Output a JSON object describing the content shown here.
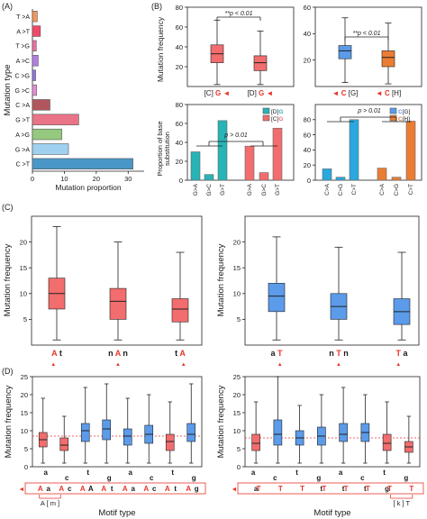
{
  "colors": {
    "red": "#f26d6d",
    "blue": "#5b9bea",
    "accent_red": "#e8342b",
    "purple": "#9b3aa6",
    "orange": "#ea7d33",
    "teal": "#27b4b6",
    "cyan": "#2aa8e0",
    "dark": "#1a1a1a"
  },
  "panel_labels": {
    "A": "(A)",
    "B": "(B)",
    "C": "(C)",
    "D": "(D)"
  },
  "chart_data": [
    {
      "panel": "A",
      "type": "bar",
      "orientation": "horizontal",
      "ylabel": "Mutation type",
      "xlabel": "Mutation proportion",
      "categories": [
        "T>A",
        "A>T",
        "T>G",
        "A>C",
        "C>G",
        "G>C",
        "C>A",
        "G>T",
        "A>G",
        "G>A",
        "C>T"
      ],
      "category_labels": [
        "T >A",
        "A >T",
        "T >G",
        "A >C",
        "C >G",
        "G >C",
        "C >A",
        "G >T",
        "A >G",
        "G >A",
        "C >T"
      ],
      "values": [
        1.5,
        2.5,
        1.2,
        1.8,
        1.0,
        1.3,
        5.5,
        14.5,
        9.2,
        11.3,
        31.5
      ],
      "colors": [
        "#f5965a",
        "#ef4a67",
        "#ee6fa0",
        "#b27fe0",
        "#8f77e0",
        "#e38fd8",
        "#b2565e",
        "#e97387",
        "#94c97f",
        "#9fd0f0",
        "#4a96c8"
      ],
      "xlim": [
        0,
        35
      ],
      "xticks": [
        "0",
        "10",
        "20",
        "30"
      ]
    },
    {
      "panel": "B1",
      "type": "box",
      "ylabel": "Mutation frequency",
      "ylim": [
        0,
        80
      ],
      "yticks": [
        "20",
        "40",
        "60",
        "80"
      ],
      "annotation": "**p < 0.01",
      "series": [
        {
          "label_black": "[C] ",
          "label_red": "G",
          "arrow": "◄",
          "color": "red",
          "min": 2,
          "q1": 24,
          "median": 33,
          "q3": 42,
          "max": 67
        },
        {
          "label_black": "[D] ",
          "label_red": "G",
          "arrow": "◄",
          "color": "red",
          "min": 2,
          "q1": 16,
          "median": 24,
          "q3": 31,
          "max": 56
        }
      ]
    },
    {
      "panel": "B2",
      "type": "box",
      "ylim": [
        0,
        60
      ],
      "yticks": [
        "20",
        "40",
        "60"
      ],
      "annotation": "**p < 0.01",
      "series": [
        {
          "label_prefix": "◄ ",
          "label_red": "C",
          "label_black": " [G]",
          "color": "blue",
          "min": 3,
          "q1": 21,
          "median": 27,
          "q3": 31,
          "max": 52
        },
        {
          "label_prefix": "◄ ",
          "label_red": "C",
          "label_black": " [H]",
          "color": "orange",
          "min": 2,
          "q1": 15,
          "median": 22,
          "q3": 27,
          "max": 48
        }
      ]
    },
    {
      "panel": "B3",
      "type": "bar",
      "ylabel": "Proportion of base",
      "ylabel2": "substitution",
      "ylim": [
        0,
        80
      ],
      "yticks": [
        "0",
        "20",
        "40",
        "60",
        "80"
      ],
      "annotation": "p > 0.01",
      "legend": [
        {
          "label_black": "[D]",
          "label_colored": "G",
          "color": "teal"
        },
        {
          "label_black": "[C]",
          "label_colored": "G",
          "color": "red"
        }
      ],
      "categories": [
        "G>A",
        "G>C",
        "G>T",
        "G>A",
        "G>C",
        "G>T"
      ],
      "values": [
        30,
        6,
        63,
        36,
        8,
        55
      ],
      "colors": [
        "teal",
        "teal",
        "teal",
        "red",
        "red",
        "red"
      ]
    },
    {
      "panel": "B4",
      "type": "bar",
      "ylim": [
        0,
        100
      ],
      "yticks": [
        "0",
        "20",
        "40",
        "60",
        "80"
      ],
      "annotation": "p > 0.01",
      "legend": [
        {
          "label_black": "",
          "label_colored": "C",
          "label_after": "[G]",
          "color": "blue"
        },
        {
          "label_black": "",
          "label_colored": "C",
          "label_after": "[H]",
          "color": "orange"
        }
      ],
      "categories": [
        "C>A",
        "C>G",
        "C>T",
        "C>A",
        "C>G",
        "C>T"
      ],
      "values": [
        15,
        4,
        80,
        16,
        4,
        78
      ],
      "colors": [
        "cyan",
        "cyan",
        "cyan",
        "orange",
        "orange",
        "orange"
      ]
    },
    {
      "panel": "C1",
      "type": "box",
      "ylabel": "Mutation frequency",
      "ylim": [
        0,
        25
      ],
      "yticks": [
        "5",
        "10",
        "15",
        "20"
      ],
      "series": [
        {
          "color": "red",
          "min": 1,
          "q1": 7,
          "median": 10,
          "q3": 13,
          "max": 23,
          "label": [
            {
              "t": "A",
              "red": true
            },
            {
              "t": "t",
              "red": false
            }
          ],
          "arrow_index": 0
        },
        {
          "color": "red",
          "min": 1,
          "q1": 5,
          "median": 8.5,
          "q3": 11,
          "max": 20,
          "label": [
            {
              "t": "n",
              "red": false
            },
            {
              "t": "A",
              "red": true
            },
            {
              "t": "n",
              "red": false
            }
          ],
          "arrow_index": 1
        },
        {
          "color": "red",
          "min": 1,
          "q1": 4.5,
          "median": 7,
          "q3": 9,
          "max": 18,
          "label": [
            {
              "t": "t",
              "red": false
            },
            {
              "t": "A",
              "red": true
            }
          ],
          "arrow_index": 1
        }
      ]
    },
    {
      "panel": "C2",
      "type": "box",
      "ylabel": "Mutation frequency",
      "ylim": [
        0,
        25
      ],
      "yticks": [
        "5",
        "10",
        "15",
        "20"
      ],
      "series": [
        {
          "color": "blue",
          "min": 1,
          "q1": 6.5,
          "median": 9.5,
          "q3": 12,
          "max": 21,
          "label": [
            {
              "t": "a",
              "red": false
            },
            {
              "t": "T",
              "red": true
            }
          ],
          "arrow_index": 1
        },
        {
          "color": "blue",
          "min": 1,
          "q1": 5,
          "median": 7.5,
          "q3": 10,
          "max": 19,
          "label": [
            {
              "t": "n",
              "red": false
            },
            {
              "t": "T",
              "red": true
            },
            {
              "t": "n",
              "red": false
            }
          ],
          "arrow_index": 1
        },
        {
          "color": "blue",
          "min": 1,
          "q1": 4,
          "median": 6.5,
          "q3": 9,
          "max": 18,
          "label": [
            {
              "t": "T",
              "red": true
            },
            {
              "t": "a",
              "red": false
            }
          ],
          "arrow_index": 0
        }
      ]
    },
    {
      "panel": "D1",
      "type": "box",
      "ylabel": "Mutation frequency",
      "xlabel": "Motif type",
      "ylim": [
        0,
        25
      ],
      "yticks": [
        "0",
        "5",
        "10",
        "15",
        "20",
        "25"
      ],
      "reference_line": 8.5,
      "bracket_label": "A [ m ]",
      "series": [
        {
          "color": "red",
          "min": 1,
          "q1": 5.5,
          "median": 7.5,
          "q3": 9.5,
          "max": 19,
          "top": "a",
          "bottom": "A"
        },
        {
          "color": "red",
          "min": 1,
          "q1": 4.5,
          "median": 6,
          "q3": 8,
          "max": 14,
          "top": "c",
          "bottom": "A"
        },
        {
          "color": "blue",
          "min": 1,
          "q1": 7,
          "median": 10,
          "q3": 12,
          "max": 22,
          "top": "t",
          "bottom": "A"
        },
        {
          "color": "blue",
          "min": 1,
          "q1": 7.5,
          "median": 10.5,
          "q3": 13,
          "max": 23,
          "top": "g",
          "bottom": "A"
        },
        {
          "color": "blue",
          "min": 1,
          "q1": 6,
          "median": 8.5,
          "q3": 10.5,
          "max": 19,
          "top": "a",
          "bottom": "A"
        },
        {
          "color": "blue",
          "min": 1,
          "q1": 6.5,
          "median": 9,
          "q3": 11.5,
          "max": 20,
          "top": "c",
          "bottom": "A"
        },
        {
          "color": "red",
          "min": 1,
          "q1": 4.5,
          "median": 7,
          "q3": 9,
          "max": 18,
          "top": "t",
          "bottom": "A"
        },
        {
          "color": "blue",
          "min": 1,
          "q1": 7,
          "median": 9,
          "q3": 12,
          "max": 23,
          "top": "g",
          "bottom": "A"
        }
      ],
      "bottom_extra": [
        {
          "t": "a",
          "after": 0
        },
        {
          "t": "c",
          "after": 1
        },
        {
          "t": "A",
          "after": 2
        },
        {
          "t": "t",
          "after": 3
        },
        {
          "t": "a",
          "after": 4
        },
        {
          "t": "c",
          "after": 5
        },
        {
          "t": "t",
          "after": 6
        },
        {
          "t": "g",
          "after": 7
        }
      ]
    },
    {
      "panel": "D2",
      "type": "box",
      "ylabel": "Mutation frequency",
      "xlabel": "Motif type",
      "ylim": [
        0,
        25
      ],
      "yticks": [
        "0",
        "5",
        "10",
        "15",
        "20",
        "25"
      ],
      "reference_line": 8,
      "bracket_label": "[ k ] T",
      "series": [
        {
          "color": "red",
          "min": 1,
          "q1": 4.5,
          "median": 6.5,
          "q3": 9,
          "max": 18,
          "top": "a",
          "bottom": "T"
        },
        {
          "color": "blue",
          "min": 1,
          "q1": 6,
          "median": 9,
          "q3": 13,
          "max": 25,
          "top": "c",
          "bottom": "T"
        },
        {
          "color": "blue",
          "min": 1,
          "q1": 6,
          "median": 8,
          "q3": 10,
          "max": 17,
          "top": "t",
          "bottom": "T"
        },
        {
          "color": "blue",
          "min": 1,
          "q1": 6,
          "median": 8.5,
          "q3": 11,
          "max": 20,
          "top": "g",
          "bottom": "T"
        },
        {
          "color": "blue",
          "min": 1,
          "q1": 7,
          "median": 9,
          "q3": 12,
          "max": 22,
          "top": "a",
          "bottom": "T"
        },
        {
          "color": "blue",
          "min": 1,
          "q1": 7,
          "median": 9.5,
          "q3": 12,
          "max": 20,
          "top": "c",
          "bottom": "T"
        },
        {
          "color": "red",
          "min": 1,
          "q1": 4.5,
          "median": 6.5,
          "q3": 9,
          "max": 18,
          "top": "t",
          "bottom": "T"
        },
        {
          "color": "red",
          "min": 1,
          "q1": 4,
          "median": 5.5,
          "q3": 7,
          "max": 14,
          "top": "g",
          "bottom": "T"
        }
      ],
      "bottom_extra": [
        {
          "t": "a",
          "after": 0
        },
        {
          "t": "t",
          "after": 3
        },
        {
          "t": "t",
          "after": 4
        },
        {
          "t": "t",
          "after": 5
        },
        {
          "t": "g",
          "after": 6
        }
      ]
    }
  ]
}
